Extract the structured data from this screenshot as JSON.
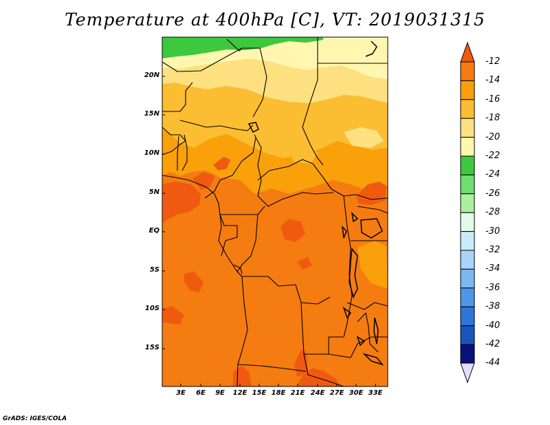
{
  "title": "Temperature at 400hPa [C], VT: 2019031315",
  "credit": "GrADS: IGES/COLA",
  "lat_labels": [
    "20N",
    "15N",
    "10N",
    "5N",
    "EQ",
    "5S",
    "10S",
    "15S"
  ],
  "lon_labels": [
    "3E",
    "6E",
    "9E",
    "12E",
    "15E",
    "18E",
    "21E",
    "24E",
    "27E",
    "30E",
    "33E"
  ],
  "colorbar": {
    "labels": [
      "-12",
      "-14",
      "-16",
      "-18",
      "-20",
      "-22",
      "-24",
      "-26",
      "-28",
      "-30",
      "-32",
      "-34",
      "-36",
      "-38",
      "-40",
      "-42",
      "-44"
    ],
    "colors": [
      "#f05a10",
      "#f47c10",
      "#f9a00a",
      "#fbbd32",
      "#fde080",
      "#fff7b0",
      "#3ec83e",
      "#6fdd6f",
      "#aaf0a0",
      "#e2fbe8",
      "#ccebf9",
      "#a8d4f5",
      "#7cb8ef",
      "#4d98e6",
      "#2d76d9",
      "#1a55bd",
      "#0d3590",
      "#08127a",
      "#e0e0f8"
    ]
  },
  "field_colors": {
    "t_minus12": "#f05a10",
    "t_minus14": "#f47c10",
    "t_minus16": "#f9a00a",
    "t_minus18": "#fbbd32",
    "t_minus20": "#fde080",
    "t_minus22": "#fff7b0",
    "t_minus24": "#3ec83e"
  }
}
